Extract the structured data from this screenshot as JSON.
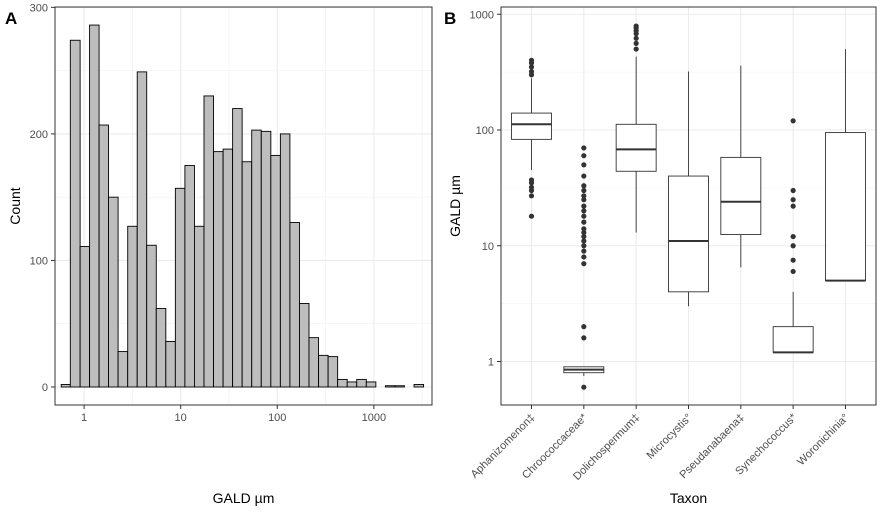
{
  "panels": {
    "a": {
      "tag": "A",
      "chart_data": {
        "type": "bar",
        "subtype": "histogram",
        "x_scale": "log10",
        "xlabel": "GALD µm",
        "ylabel": "Count",
        "xlim": [
          0.5,
          4000
        ],
        "ylim": [
          0,
          300
        ],
        "x_ticks": [
          1,
          10,
          100,
          1000
        ],
        "x_tick_labels": [
          "1",
          "10",
          "100",
          "1000"
        ],
        "y_ticks": [
          0,
          100,
          200,
          300
        ],
        "y_tick_labels": [
          "0",
          "100",
          "200",
          "300"
        ],
        "bar_fill": "#bdbdbd",
        "bar_stroke": "#000000",
        "grid": true,
        "bins": [
          {
            "x0": 0.58,
            "x1": 0.72,
            "count": 2
          },
          {
            "x0": 0.72,
            "x1": 0.91,
            "count": 274
          },
          {
            "x0": 0.91,
            "x1": 1.14,
            "count": 111
          },
          {
            "x0": 1.14,
            "x1": 1.43,
            "count": 286
          },
          {
            "x0": 1.43,
            "x1": 1.79,
            "count": 207
          },
          {
            "x0": 1.79,
            "x1": 2.25,
            "count": 150
          },
          {
            "x0": 2.25,
            "x1": 2.83,
            "count": 28
          },
          {
            "x0": 2.83,
            "x1": 3.55,
            "count": 127
          },
          {
            "x0": 3.55,
            "x1": 4.45,
            "count": 249
          },
          {
            "x0": 4.45,
            "x1": 5.59,
            "count": 112
          },
          {
            "x0": 5.59,
            "x1": 7.02,
            "count": 62
          },
          {
            "x0": 7.02,
            "x1": 8.81,
            "count": 36
          },
          {
            "x0": 8.81,
            "x1": 11.06,
            "count": 157
          },
          {
            "x0": 11.06,
            "x1": 13.89,
            "count": 175
          },
          {
            "x0": 13.89,
            "x1": 17.44,
            "count": 127
          },
          {
            "x0": 17.44,
            "x1": 21.9,
            "count": 230
          },
          {
            "x0": 21.9,
            "x1": 27.5,
            "count": 186
          },
          {
            "x0": 27.5,
            "x1": 34.5,
            "count": 188
          },
          {
            "x0": 34.5,
            "x1": 43.3,
            "count": 220
          },
          {
            "x0": 43.3,
            "x1": 54.4,
            "count": 178
          },
          {
            "x0": 54.4,
            "x1": 68.3,
            "count": 203
          },
          {
            "x0": 68.3,
            "x1": 85.8,
            "count": 202
          },
          {
            "x0": 85.8,
            "x1": 107.7,
            "count": 183
          },
          {
            "x0": 107.7,
            "x1": 135.2,
            "count": 200
          },
          {
            "x0": 135.2,
            "x1": 169.8,
            "count": 130
          },
          {
            "x0": 169.8,
            "x1": 213.2,
            "count": 66
          },
          {
            "x0": 213.2,
            "x1": 267.7,
            "count": 39
          },
          {
            "x0": 267.7,
            "x1": 336.1,
            "count": 25
          },
          {
            "x0": 336.1,
            "x1": 422,
            "count": 24
          },
          {
            "x0": 422,
            "x1": 529.9,
            "count": 6
          },
          {
            "x0": 529.9,
            "x1": 665.3,
            "count": 4
          },
          {
            "x0": 665.3,
            "x1": 835.4,
            "count": 6
          },
          {
            "x0": 835.4,
            "x1": 1049,
            "count": 4
          },
          {
            "x0": 1049,
            "x1": 1317,
            "count": 0
          },
          {
            "x0": 1317,
            "x1": 1654,
            "count": 1
          },
          {
            "x0": 1654,
            "x1": 2076,
            "count": 1
          },
          {
            "x0": 2076,
            "x1": 2607,
            "count": 0
          },
          {
            "x0": 2607,
            "x1": 3273,
            "count": 2
          }
        ]
      }
    },
    "b": {
      "tag": "B",
      "chart_data": {
        "type": "box",
        "y_scale": "log10",
        "xlabel": "Taxon",
        "ylabel": "GALD µm",
        "ylim": [
          0.35,
          1100
        ],
        "y_ticks": [
          1,
          10,
          100,
          1000
        ],
        "y_tick_labels": [
          "1",
          "10",
          "100",
          "1000"
        ],
        "grid": true,
        "categories": [
          "Aphanizomenon‡",
          "Chroococcaceae*",
          "Dolichospermum‡",
          "Microcystis°",
          "Pseudanabaena‡",
          "Synechococcus*",
          "Woronichinia°"
        ],
        "boxes": [
          {
            "whisker_low": 45,
            "q1": 83,
            "median": 112,
            "q3": 140,
            "whisker_high": 280,
            "outliers": [
              18,
              27,
              30,
              32,
              35,
              37,
              300,
              320,
              350,
              380,
              400
            ]
          },
          {
            "whisker_low": 0.75,
            "q1": 0.8,
            "median": 0.85,
            "q3": 0.9,
            "whisker_high": 0.9,
            "outliers": [
              0.6,
              1.6,
              2,
              7,
              8,
              9,
              10,
              11,
              12,
              13,
              14,
              16,
              18,
              20,
              22,
              25,
              27,
              30,
              33,
              40,
              50,
              60,
              70
            ]
          },
          {
            "whisker_low": 13,
            "q1": 44,
            "median": 68,
            "q3": 112,
            "whisker_high": 430,
            "outliers": [
              500,
              560,
              620,
              680,
              720,
              760,
              790
            ]
          },
          {
            "whisker_low": 3,
            "q1": 4,
            "median": 11,
            "q3": 40,
            "whisker_high": 320,
            "outliers": []
          },
          {
            "whisker_low": 6.5,
            "q1": 12.5,
            "median": 24,
            "q3": 58,
            "whisker_high": 360,
            "outliers": []
          },
          {
            "whisker_low": 1.2,
            "q1": 1.2,
            "median": 1.2,
            "q3": 2,
            "whisker_high": 4,
            "outliers": [
              6,
              7.5,
              10,
              12,
              22,
              25,
              30,
              120
            ]
          },
          {
            "whisker_low": 5,
            "q1": 5,
            "median": 5,
            "q3": 95,
            "whisker_high": 500,
            "outliers": []
          }
        ]
      }
    }
  }
}
